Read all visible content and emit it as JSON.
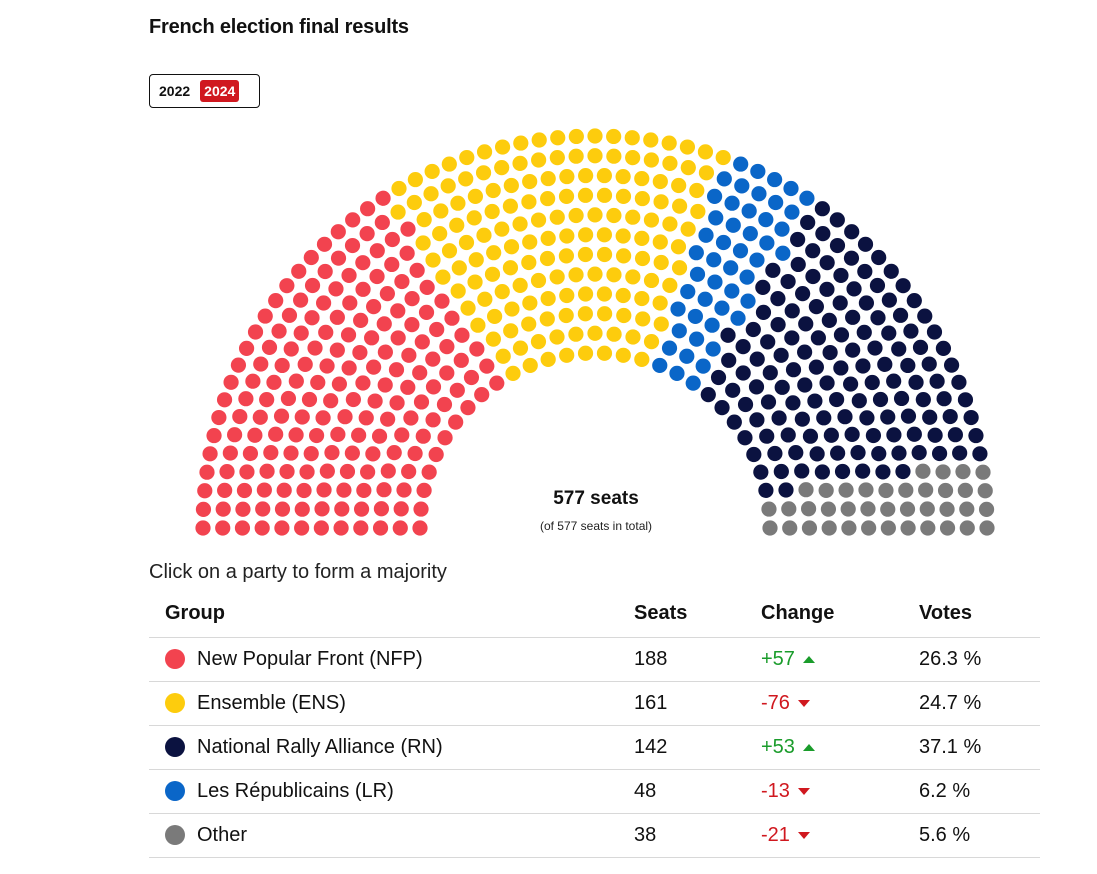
{
  "title": "French election final results",
  "year_toggle": {
    "options": [
      "2022",
      "2024"
    ],
    "selected": "2024"
  },
  "center_label": {
    "seats": "577 seats",
    "total": "(of 577 seats in total)"
  },
  "prompt": "Click on a party to form a majority",
  "colors": {
    "accent": "#d0181f",
    "up": "#1a9c2b",
    "down": "#d0181f"
  },
  "table": {
    "headers": {
      "group": "Group",
      "seats": "Seats",
      "change": "Change",
      "votes": "Votes"
    },
    "rows": [
      {
        "party": "New Popular Front (NFP)",
        "seats": "188",
        "change": "+57",
        "direction": "up",
        "votes": "26.3 %",
        "color": "#f2434f"
      },
      {
        "party": "Ensemble (ENS)",
        "seats": "161",
        "change": "-76",
        "direction": "down",
        "votes": "24.7 %",
        "color": "#fdcc0d"
      },
      {
        "party": "National Rally Alliance (RN)",
        "seats": "142",
        "change": "+53",
        "direction": "up",
        "votes": "37.1 %",
        "color": "#0b1240"
      },
      {
        "party": "Les Républicains (LR)",
        "seats": "48",
        "change": "-13",
        "direction": "down",
        "votes": "6.2 %",
        "color": "#0a66c8"
      },
      {
        "party": "Other",
        "seats": "38",
        "change": "-21",
        "direction": "down",
        "votes": "5.6 %",
        "color": "#7a7a7a"
      }
    ]
  },
  "chart_data": {
    "type": "hemicycle",
    "total_seats": 577,
    "series": [
      {
        "name": "New Popular Front (NFP)",
        "value": 188,
        "color": "#f2434f"
      },
      {
        "name": "Ensemble (ENS)",
        "value": 161,
        "color": "#fdcc0d"
      },
      {
        "name": "Les Républicains (LR)",
        "value": 48,
        "color": "#0a66c8"
      },
      {
        "name": "National Rally Alliance (RN)",
        "value": 142,
        "color": "#0b1240"
      },
      {
        "name": "Other",
        "value": 38,
        "color": "#7a7a7a"
      }
    ]
  }
}
